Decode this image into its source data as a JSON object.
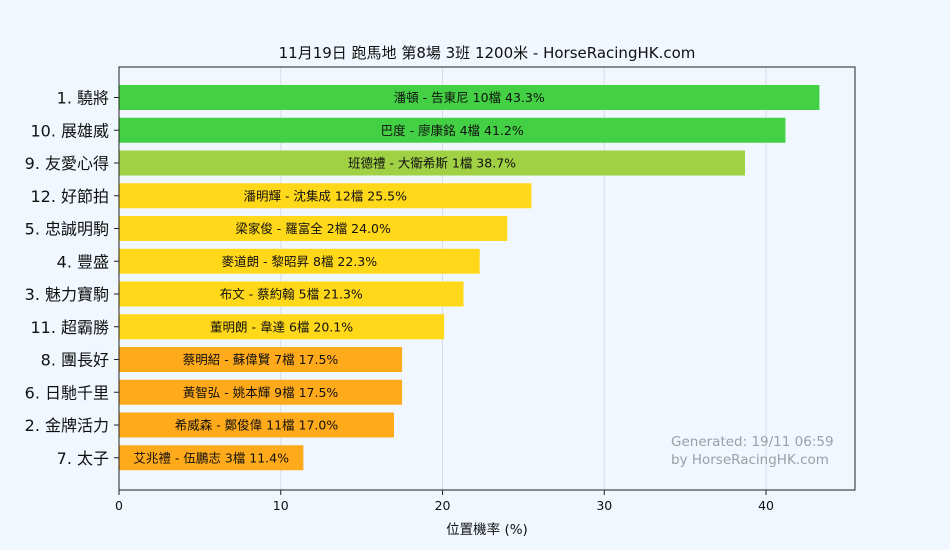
{
  "chart_data": {
    "type": "bar",
    "orientation": "horizontal",
    "title": "11月19日  跑馬地  第8場  3班  1200米 - HorseRacingHK.com",
    "xlabel": "位置機率 (%)",
    "ylabel": "",
    "xlim": [
      0,
      45.5
    ],
    "xticks": [
      0,
      10,
      20,
      30,
      40
    ],
    "grid": true,
    "categories": [
      "1. 驍將",
      "10. 展雄威",
      "9. 友愛心得",
      "12. 好節拍",
      "5. 忠誠明駒",
      "4. 豐盛",
      "3. 魅力寶駒",
      "11. 超霸勝",
      "8. 團長好",
      "6. 日馳千里",
      "2. 金牌活力",
      "7. 太子"
    ],
    "values": [
      43.3,
      41.2,
      38.7,
      25.5,
      24.0,
      22.3,
      21.3,
      20.1,
      17.5,
      17.5,
      17.0,
      11.4
    ],
    "bar_labels": [
      "潘頓 - 告東尼 10檔  43.3%",
      "巴度 - 廖康銘 4檔  41.2%",
      "班德禮 - 大衛希斯 1檔  38.7%",
      "潘明輝 - 沈集成 12檔  25.5%",
      "梁家俊 - 羅富全 2檔  24.0%",
      "麥道朗 - 黎昭昇 8檔  22.3%",
      "布文 - 蔡約翰 5檔  21.3%",
      "董明朗 - 韋達 6檔  20.1%",
      "蔡明紹 - 蘇偉賢 7檔  17.5%",
      "黃智弘 - 姚本輝 9檔  17.5%",
      "希威森 - 鄭俊偉 11檔  17.0%",
      "艾兆禮 - 伍鵬志 3檔  11.4%"
    ],
    "colors": [
      "#44d044",
      "#44d044",
      "#a0d044",
      "#ffd81a",
      "#ffd81a",
      "#ffd81a",
      "#ffd81a",
      "#ffd81a",
      "#ffaa1a",
      "#ffaa1a",
      "#ffaa1a",
      "#ffaa1a"
    ],
    "watermark": [
      "Generated: 19/11 06:59",
      "by HorseRacingHK.com"
    ]
  }
}
